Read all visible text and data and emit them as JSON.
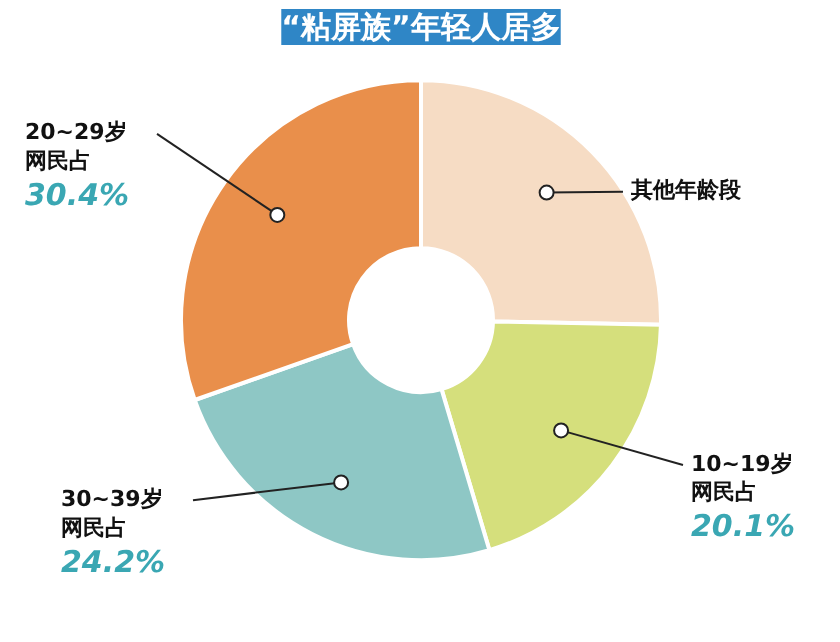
{
  "chart_data": {
    "type": "donut",
    "title": "“粘屏族”年轻人居多",
    "categories": [
      "其他年龄段",
      "10~19岁",
      "30~39岁",
      "20~29岁"
    ],
    "values": [
      25.3,
      20.1,
      24.2,
      30.4
    ],
    "colors": [
      "#f6dcc4",
      "#d5df7c",
      "#8ec7c5",
      "#e98f4b"
    ],
    "value_labels": [
      null,
      "20.1%",
      "24.2%",
      "30.4%"
    ],
    "annotations": [
      {
        "text": "网民占",
        "x": "10~19岁"
      },
      {
        "text": "网民占",
        "x": "30~39岁"
      },
      {
        "text": "网民占",
        "x": "20~29岁"
      }
    ]
  }
}
